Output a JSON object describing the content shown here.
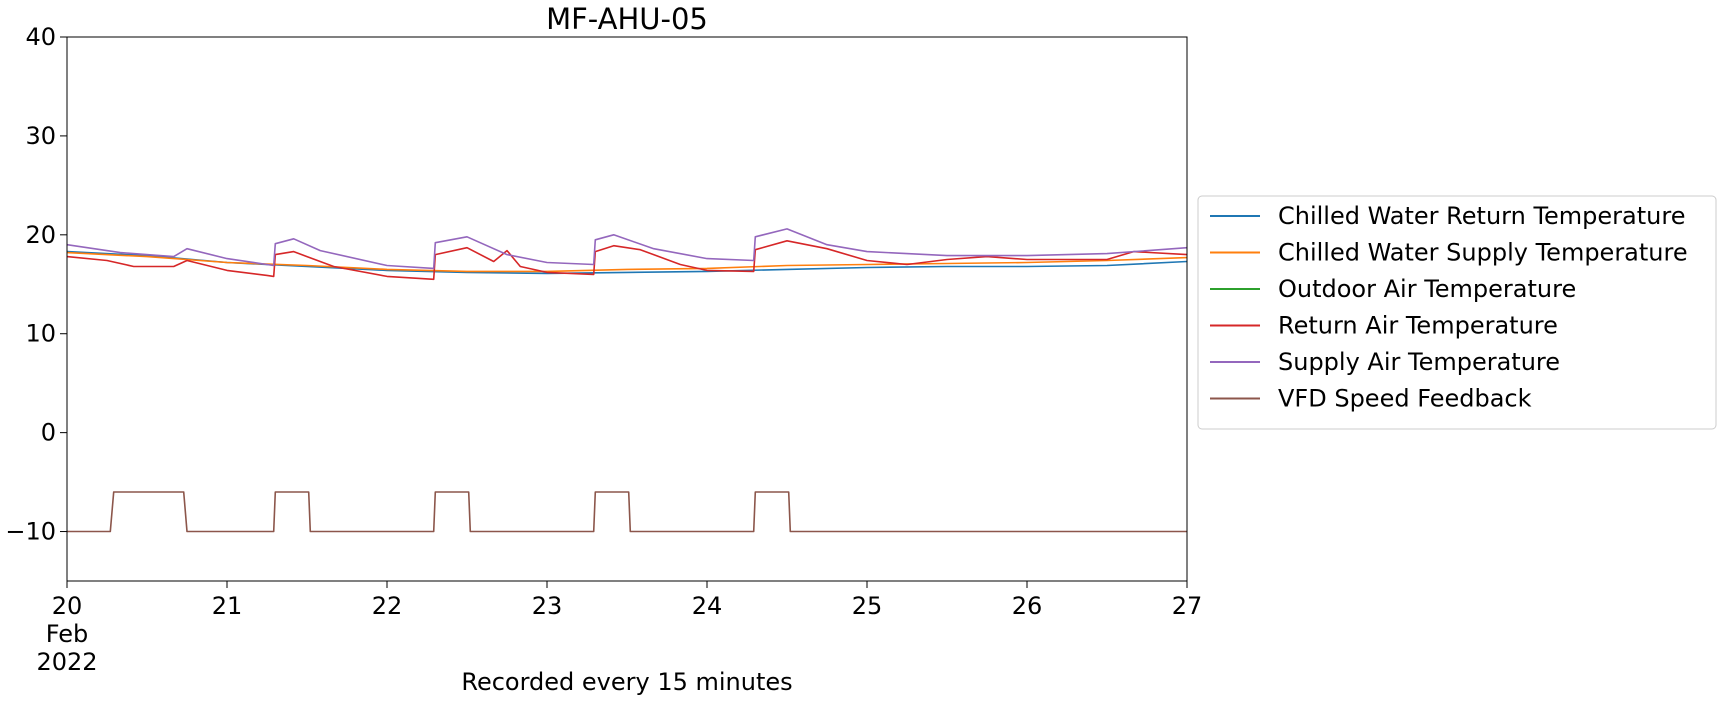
{
  "chart_data": {
    "type": "line",
    "title": "MF-AHU-05",
    "xlabel": "Recorded every 15 minutes",
    "ylabel": "",
    "x_axis": {
      "type": "date",
      "range": [
        "2022-02-20",
        "2022-02-27"
      ],
      "ticks": [
        "2022-02-20",
        "2022-02-21",
        "2022-02-22",
        "2022-02-23",
        "2022-02-24",
        "2022-02-25",
        "2022-02-26",
        "2022-02-27"
      ],
      "tick_labels": [
        "20",
        "21",
        "22",
        "23",
        "24",
        "25",
        "26",
        "27"
      ],
      "first_tick_extra": [
        "Feb",
        "2022"
      ]
    },
    "ylim": [
      -15,
      40
    ],
    "yticks": [
      -10,
      0,
      10,
      20,
      30,
      40
    ],
    "ytick_labels": [
      "−10",
      "0",
      "10",
      "20",
      "30",
      "40"
    ],
    "grid": false,
    "legend_position": "center-left outside right",
    "series": [
      {
        "name": "Chilled Water Return Temperature",
        "color": "#1f77b4",
        "points": [
          [
            "2022-02-20 00:00",
            18.3
          ],
          [
            "2022-02-20 12:00",
            17.9
          ],
          [
            "2022-02-21 00:00",
            17.2
          ],
          [
            "2022-02-21 12:00",
            16.8
          ],
          [
            "2022-02-22 00:00",
            16.4
          ],
          [
            "2022-02-22 12:00",
            16.2
          ],
          [
            "2022-02-23 00:00",
            16.1
          ],
          [
            "2022-02-23 12:00",
            16.2
          ],
          [
            "2022-02-24 00:00",
            16.3
          ],
          [
            "2022-02-24 12:00",
            16.5
          ],
          [
            "2022-02-25 00:00",
            16.7
          ],
          [
            "2022-02-25 12:00",
            16.8
          ],
          [
            "2022-02-26 00:00",
            16.8
          ],
          [
            "2022-02-26 12:00",
            16.9
          ],
          [
            "2022-02-27 00:00",
            17.3
          ]
        ]
      },
      {
        "name": "Chilled Water Supply Temperature",
        "color": "#ff7f0e",
        "points": [
          [
            "2022-02-20 00:00",
            18.2
          ],
          [
            "2022-02-20 12:00",
            17.8
          ],
          [
            "2022-02-21 00:00",
            17.2
          ],
          [
            "2022-02-21 12:00",
            16.9
          ],
          [
            "2022-02-22 00:00",
            16.5
          ],
          [
            "2022-02-22 12:00",
            16.3
          ],
          [
            "2022-02-23 00:00",
            16.3
          ],
          [
            "2022-02-23 12:00",
            16.5
          ],
          [
            "2022-02-24 00:00",
            16.6
          ],
          [
            "2022-02-24 12:00",
            16.9
          ],
          [
            "2022-02-25 00:00",
            17.0
          ],
          [
            "2022-02-25 12:00",
            17.1
          ],
          [
            "2022-02-26 00:00",
            17.2
          ],
          [
            "2022-02-26 12:00",
            17.4
          ],
          [
            "2022-02-27 00:00",
            17.7
          ]
        ]
      },
      {
        "name": "Outdoor Air Temperature",
        "color": "#2ca02c",
        "points": []
      },
      {
        "name": "Return Air Temperature",
        "color": "#d62728",
        "points": [
          [
            "2022-02-20 00:00",
            17.8
          ],
          [
            "2022-02-20 06:00",
            17.4
          ],
          [
            "2022-02-20 10:00",
            16.8
          ],
          [
            "2022-02-20 16:00",
            16.8
          ],
          [
            "2022-02-20 18:00",
            17.4
          ],
          [
            "2022-02-21 00:00",
            16.4
          ],
          [
            "2022-02-21 06:00",
            15.9
          ],
          [
            "2022-02-21 07:00",
            15.8
          ],
          [
            "2022-02-21 07:15",
            18.0
          ],
          [
            "2022-02-21 10:00",
            18.3
          ],
          [
            "2022-02-21 12:00",
            17.8
          ],
          [
            "2022-02-21 16:00",
            16.8
          ],
          [
            "2022-02-22 00:00",
            15.8
          ],
          [
            "2022-02-22 07:00",
            15.5
          ],
          [
            "2022-02-22 07:15",
            18.0
          ],
          [
            "2022-02-22 12:00",
            18.7
          ],
          [
            "2022-02-22 16:00",
            17.3
          ],
          [
            "2022-02-22 18:00",
            18.4
          ],
          [
            "2022-02-22 20:00",
            16.8
          ],
          [
            "2022-02-23 00:00",
            16.2
          ],
          [
            "2022-02-23 07:00",
            16.0
          ],
          [
            "2022-02-23 07:15",
            18.3
          ],
          [
            "2022-02-23 10:00",
            18.9
          ],
          [
            "2022-02-23 14:00",
            18.5
          ],
          [
            "2022-02-23 20:00",
            17.0
          ],
          [
            "2022-02-24 00:00",
            16.4
          ],
          [
            "2022-02-24 07:00",
            16.3
          ],
          [
            "2022-02-24 07:15",
            18.5
          ],
          [
            "2022-02-24 12:00",
            19.4
          ],
          [
            "2022-02-24 18:00",
            18.6
          ],
          [
            "2022-02-25 00:00",
            17.4
          ],
          [
            "2022-02-25 06:00",
            17.0
          ],
          [
            "2022-02-25 12:00",
            17.5
          ],
          [
            "2022-02-25 18:00",
            17.8
          ],
          [
            "2022-02-26 00:00",
            17.5
          ],
          [
            "2022-02-26 12:00",
            17.5
          ],
          [
            "2022-02-26 16:00",
            18.3
          ],
          [
            "2022-02-27 00:00",
            18.0
          ]
        ]
      },
      {
        "name": "Supply Air Temperature",
        "color": "#9467bd",
        "points": [
          [
            "2022-02-20 00:00",
            19.0
          ],
          [
            "2022-02-20 08:00",
            18.2
          ],
          [
            "2022-02-20 16:00",
            17.8
          ],
          [
            "2022-02-20 18:00",
            18.6
          ],
          [
            "2022-02-21 00:00",
            17.6
          ],
          [
            "2022-02-21 07:00",
            16.9
          ],
          [
            "2022-02-21 07:15",
            19.1
          ],
          [
            "2022-02-21 10:00",
            19.6
          ],
          [
            "2022-02-21 14:00",
            18.4
          ],
          [
            "2022-02-22 00:00",
            16.9
          ],
          [
            "2022-02-22 07:00",
            16.6
          ],
          [
            "2022-02-22 07:15",
            19.2
          ],
          [
            "2022-02-22 12:00",
            19.8
          ],
          [
            "2022-02-22 18:00",
            18.0
          ],
          [
            "2022-02-23 00:00",
            17.2
          ],
          [
            "2022-02-23 07:00",
            17.0
          ],
          [
            "2022-02-23 07:15",
            19.5
          ],
          [
            "2022-02-23 10:00",
            20.0
          ],
          [
            "2022-02-23 16:00",
            18.6
          ],
          [
            "2022-02-24 00:00",
            17.6
          ],
          [
            "2022-02-24 07:00",
            17.4
          ],
          [
            "2022-02-24 07:15",
            19.8
          ],
          [
            "2022-02-24 12:00",
            20.6
          ],
          [
            "2022-02-24 18:00",
            19.0
          ],
          [
            "2022-02-25 00:00",
            18.3
          ],
          [
            "2022-02-25 12:00",
            17.9
          ],
          [
            "2022-02-26 00:00",
            17.9
          ],
          [
            "2022-02-26 12:00",
            18.1
          ],
          [
            "2022-02-27 00:00",
            18.7
          ]
        ]
      },
      {
        "name": "VFD Speed Feedback",
        "color": "#8c564b",
        "points": [
          [
            "2022-02-20 00:00",
            -10
          ],
          [
            "2022-02-20 06:30",
            -10
          ],
          [
            "2022-02-20 07:00",
            -6
          ],
          [
            "2022-02-20 17:30",
            -6
          ],
          [
            "2022-02-20 18:00",
            -10
          ],
          [
            "2022-02-21 07:00",
            -10
          ],
          [
            "2022-02-21 07:15",
            -6
          ],
          [
            "2022-02-21 12:15",
            -6
          ],
          [
            "2022-02-21 12:30",
            -10
          ],
          [
            "2022-02-22 07:00",
            -10
          ],
          [
            "2022-02-22 07:15",
            -6
          ],
          [
            "2022-02-22 12:15",
            -6
          ],
          [
            "2022-02-22 12:30",
            -10
          ],
          [
            "2022-02-23 07:00",
            -10
          ],
          [
            "2022-02-23 07:15",
            -6
          ],
          [
            "2022-02-23 12:15",
            -6
          ],
          [
            "2022-02-23 12:30",
            -10
          ],
          [
            "2022-02-24 07:00",
            -10
          ],
          [
            "2022-02-24 07:15",
            -6
          ],
          [
            "2022-02-24 12:15",
            -6
          ],
          [
            "2022-02-24 12:30",
            -10
          ],
          [
            "2022-02-27 00:00",
            -10
          ]
        ]
      }
    ]
  }
}
